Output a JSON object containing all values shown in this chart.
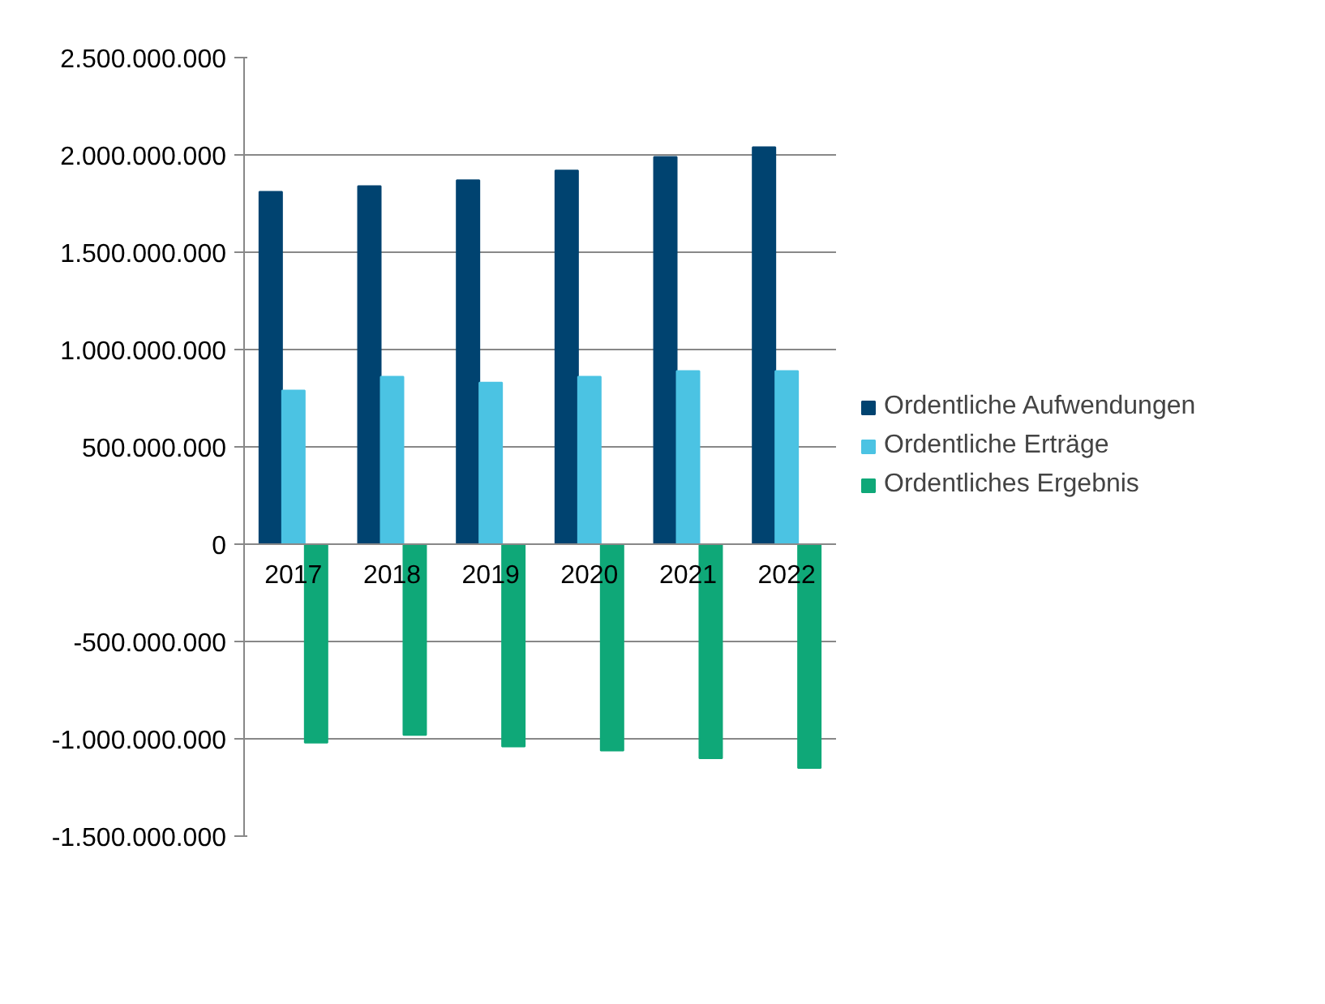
{
  "chart_data": {
    "type": "bar",
    "categories": [
      "2017",
      "2018",
      "2019",
      "2020",
      "2021",
      "2022"
    ],
    "series": [
      {
        "name": "Ordentliche Aufwendungen",
        "color": "#004370",
        "values": [
          1810000000,
          1840000000,
          1870000000,
          1920000000,
          1990000000,
          2040000000
        ]
      },
      {
        "name": "Ordentliche Erträge",
        "color": "#4bc3e3",
        "values": [
          790000000,
          860000000,
          830000000,
          860000000,
          890000000,
          890000000
        ]
      },
      {
        "name": "Ordentliches Ergebnis",
        "color": "#0fa878",
        "values": [
          -1020000000,
          -980000000,
          -1040000000,
          -1060000000,
          -1100000000,
          -1150000000
        ]
      }
    ],
    "ylim": [
      -1500000000,
      2500000000
    ],
    "yticks": [
      {
        "value": -1500000000,
        "label": "-1.500.000.000"
      },
      {
        "value": -1000000000,
        "label": "-1.000.000.000"
      },
      {
        "value": -500000000,
        "label": "-500.000.000"
      },
      {
        "value": 0,
        "label": "0"
      },
      {
        "value": 500000000,
        "label": "500.000.000"
      },
      {
        "value": 1000000000,
        "label": "1.000.000.000"
      },
      {
        "value": 1500000000,
        "label": "1.500.000.000"
      },
      {
        "value": 2000000000,
        "label": "2.000.000.000"
      },
      {
        "value": 2500000000,
        "label": "2.500.000.000"
      }
    ],
    "grid": "y",
    "legend": "right"
  }
}
